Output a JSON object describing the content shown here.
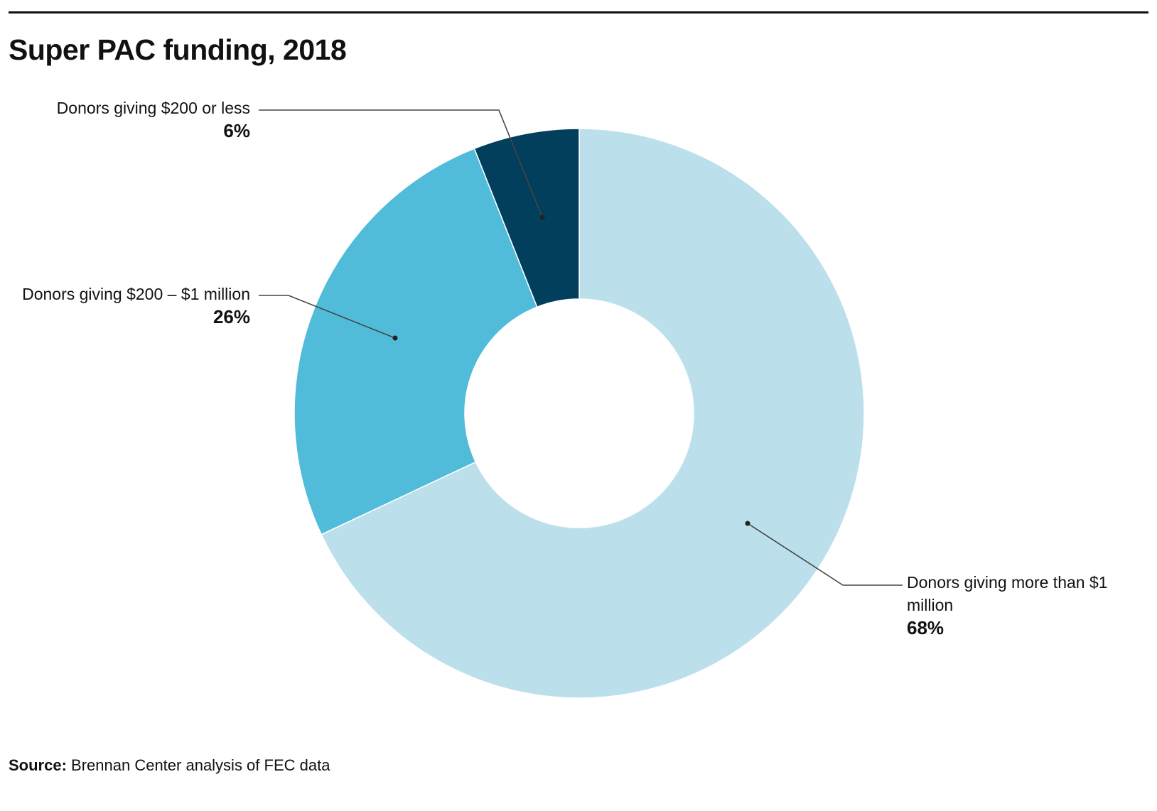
{
  "title": "Super PAC funding, 2018",
  "source": {
    "label": "Source:",
    "text": " Brennan Center analysis of FEC data"
  },
  "chart_data": {
    "type": "pie",
    "donut": true,
    "title": "Super PAC funding, 2018",
    "unit": "%",
    "slices": [
      {
        "label": "Donors giving more than $1 million",
        "value": 68,
        "display": "68%",
        "color": "#bcdfec"
      },
      {
        "label": "Donors giving $200 – $1 million",
        "value": 26,
        "display": "26%",
        "color": "#50bcd9"
      },
      {
        "label": "Donors giving $200 or less",
        "value": 6,
        "display": "6%",
        "color": "#023f5c"
      }
    ],
    "legend": "none",
    "labels_placement": "callouts"
  },
  "colors": {
    "leader_line": "#444444",
    "text": "#111111"
  }
}
